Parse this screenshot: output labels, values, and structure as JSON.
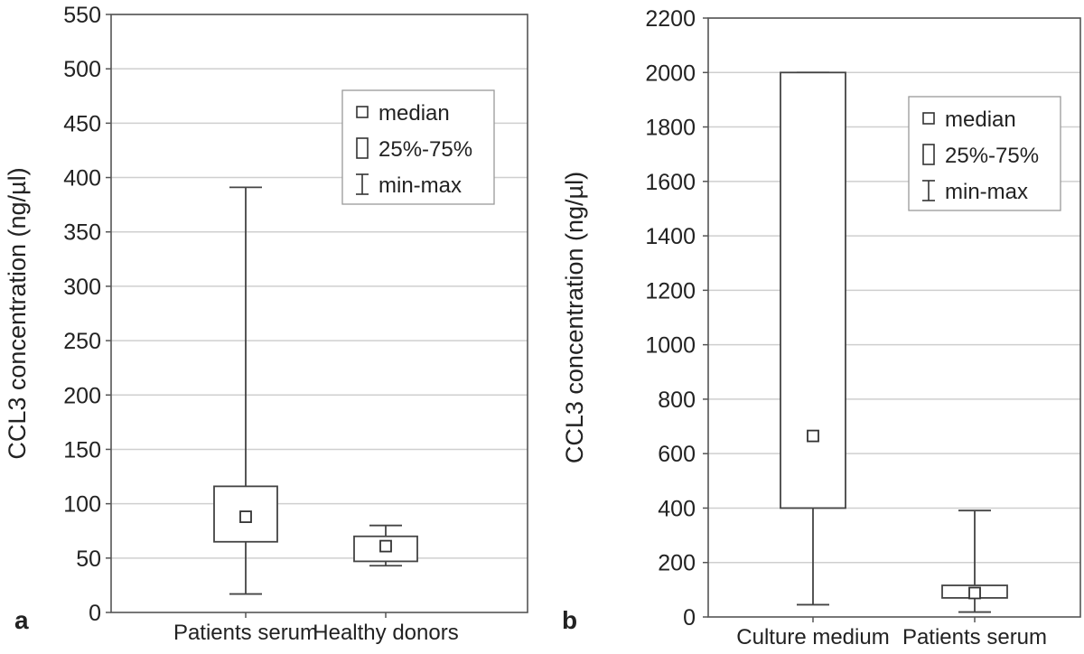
{
  "chart_data": [
    {
      "type": "box",
      "panel_label": "a",
      "ylabel": "CCL3 concentration (ng/µl)",
      "ylim": [
        0,
        550
      ],
      "yticks": [
        0,
        50,
        100,
        150,
        200,
        250,
        300,
        350,
        400,
        450,
        500,
        550
      ],
      "grid": true,
      "categories": [
        "Patients serum",
        "Healthy donors"
      ],
      "boxes": [
        {
          "category": "Patients serum",
          "min": 17,
          "q1": 65,
          "median": 88,
          "q3": 116,
          "max": 391
        },
        {
          "category": "Healthy donors",
          "min": 43,
          "q1": 47,
          "median": 61,
          "q3": 70,
          "max": 80
        }
      ],
      "legend": {
        "placement": "top-right",
        "entries": [
          "median",
          "25%-75%",
          "min-max"
        ]
      }
    },
    {
      "type": "box",
      "panel_label": "b",
      "ylabel": "CCL3 concentration (ng/µl)",
      "ylim": [
        0,
        2200
      ],
      "yticks": [
        0,
        200,
        400,
        600,
        800,
        1000,
        1200,
        1400,
        1600,
        1800,
        2000,
        2200
      ],
      "grid": true,
      "categories": [
        "Culture medium",
        "Patients serum"
      ],
      "boxes": [
        {
          "category": "Culture medium",
          "min": 45,
          "q1": 400,
          "median": 665,
          "q3": 2000,
          "max": 2000
        },
        {
          "category": "Patients serum",
          "min": 18,
          "q1": 70,
          "median": 88,
          "q3": 116,
          "max": 391
        }
      ],
      "legend": {
        "placement": "top-right",
        "entries": [
          "median",
          "25%-75%",
          "min-max"
        ]
      }
    }
  ]
}
